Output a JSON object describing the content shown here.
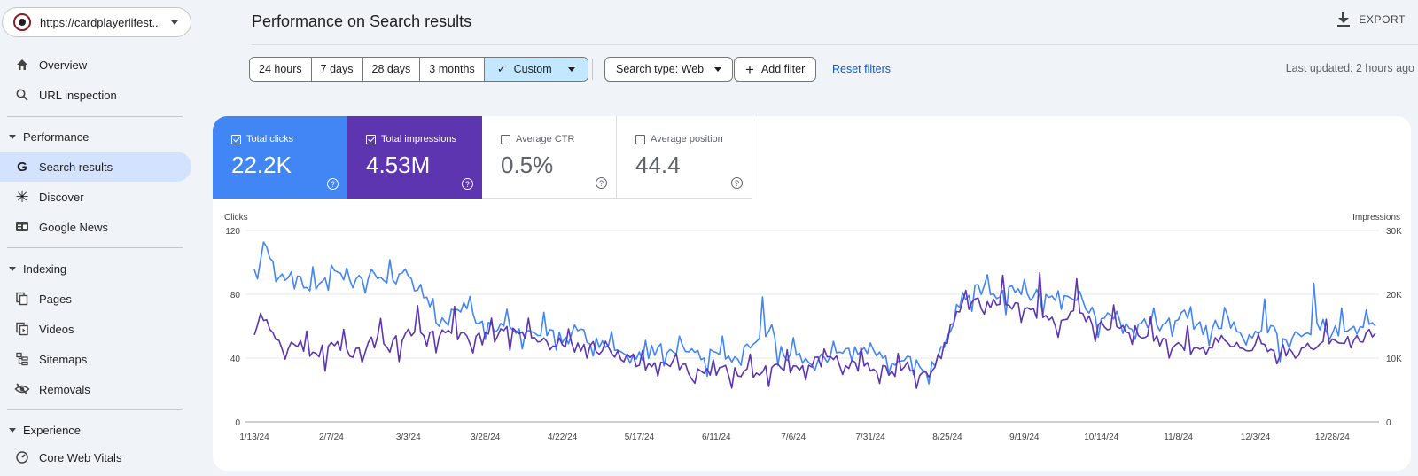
{
  "property": {
    "url": "https://cardplayerlifest..."
  },
  "sidebar": {
    "items": [
      {
        "label": "Overview",
        "icon": "home-icon"
      },
      {
        "label": "URL inspection",
        "icon": "search-icon"
      }
    ],
    "sections": [
      {
        "title": "Performance",
        "items": [
          {
            "label": "Search results",
            "icon": "google-g-icon",
            "active": true
          },
          {
            "label": "Discover",
            "icon": "asterisk-icon"
          },
          {
            "label": "Google News",
            "icon": "news-icon"
          }
        ]
      },
      {
        "title": "Indexing",
        "items": [
          {
            "label": "Pages",
            "icon": "pages-icon"
          },
          {
            "label": "Videos",
            "icon": "video-icon"
          },
          {
            "label": "Sitemaps",
            "icon": "sitemap-icon"
          },
          {
            "label": "Removals",
            "icon": "eye-off-icon"
          }
        ]
      },
      {
        "title": "Experience",
        "items": [
          {
            "label": "Core Web Vitals",
            "icon": "gauge-icon"
          }
        ]
      }
    ]
  },
  "header": {
    "title": "Performance on Search results",
    "export": "EXPORT"
  },
  "filters": {
    "ranges": [
      "24 hours",
      "7 days",
      "28 days",
      "3 months"
    ],
    "custom": "Custom",
    "search_type": "Search type: Web",
    "add_filter": "Add filter",
    "reset": "Reset filters",
    "last_updated": "Last updated: 2 hours ago"
  },
  "metrics": {
    "clicks": {
      "label": "Total clicks",
      "value": "22.2K",
      "checked": true,
      "color": "#4285f4"
    },
    "impressions": {
      "label": "Total impressions",
      "value": "4.53M",
      "checked": true,
      "color": "#5e35b1"
    },
    "ctr": {
      "label": "Average CTR",
      "value": "0.5%",
      "checked": false
    },
    "position": {
      "label": "Average position",
      "value": "44.4",
      "checked": false
    }
  },
  "chart_data": {
    "type": "line",
    "left_axis": {
      "label": "Clicks",
      "ticks": [
        "0",
        "40",
        "80",
        "120"
      ],
      "range": [
        0,
        120
      ]
    },
    "right_axis": {
      "label": "Impressions",
      "ticks": [
        "0",
        "10K",
        "20K",
        "30K"
      ],
      "range": [
        0,
        30000
      ]
    },
    "x_ticks": [
      "1/13/24",
      "2/7/24",
      "3/3/24",
      "3/28/24",
      "4/22/24",
      "5/17/24",
      "6/11/24",
      "7/6/24",
      "7/31/24",
      "8/25/24",
      "9/19/24",
      "10/14/24",
      "11/8/24",
      "12/3/24",
      "12/28/24"
    ],
    "x_start": "2024-01-13",
    "days": 364,
    "series": [
      {
        "name": "Clicks",
        "axis": "left",
        "color": "#4285f4",
        "anchors": [
          [
            0,
            92
          ],
          [
            3,
            112
          ],
          [
            7,
            88
          ],
          [
            12,
            95
          ],
          [
            18,
            84
          ],
          [
            25,
            96
          ],
          [
            32,
            85
          ],
          [
            38,
            92
          ],
          [
            45,
            88
          ],
          [
            50,
            94
          ],
          [
            55,
            80
          ],
          [
            60,
            62
          ],
          [
            66,
            73
          ],
          [
            72,
            66
          ],
          [
            78,
            60
          ],
          [
            84,
            56
          ],
          [
            90,
            60
          ],
          [
            95,
            56
          ],
          [
            100,
            52
          ],
          [
            106,
            56
          ],
          [
            112,
            48
          ],
          [
            118,
            46
          ],
          [
            124,
            42
          ],
          [
            130,
            45
          ],
          [
            136,
            44
          ],
          [
            140,
            48
          ],
          [
            145,
            40
          ],
          [
            150,
            44
          ],
          [
            156,
            40
          ],
          [
            160,
            45
          ],
          [
            165,
            52
          ],
          [
            168,
            58
          ],
          [
            172,
            42
          ],
          [
            178,
            40
          ],
          [
            184,
            38
          ],
          [
            190,
            46
          ],
          [
            196,
            44
          ],
          [
            202,
            42
          ],
          [
            208,
            40
          ],
          [
            212,
            38
          ],
          [
            216,
            36
          ],
          [
            220,
            35
          ],
          [
            222,
            42
          ],
          [
            226,
            55
          ],
          [
            230,
            78
          ],
          [
            235,
            85
          ],
          [
            240,
            80
          ],
          [
            246,
            82
          ],
          [
            252,
            80
          ],
          [
            258,
            78
          ],
          [
            262,
            82
          ],
          [
            266,
            76
          ],
          [
            272,
            70
          ],
          [
            278,
            64
          ],
          [
            282,
            60
          ],
          [
            288,
            62
          ],
          [
            292,
            58
          ],
          [
            296,
            62
          ],
          [
            302,
            66
          ],
          [
            306,
            60
          ],
          [
            310,
            58
          ],
          [
            316,
            64
          ],
          [
            320,
            56
          ],
          [
            324,
            52
          ],
          [
            330,
            60
          ],
          [
            334,
            48
          ],
          [
            338,
            52
          ],
          [
            342,
            56
          ],
          [
            346,
            62
          ],
          [
            352,
            58
          ],
          [
            358,
            60
          ],
          [
            362,
            62
          ],
          [
            364,
            58
          ]
        ],
        "spikes": [
          [
            1,
            -6
          ],
          [
            6,
            8
          ],
          [
            13,
            -12
          ],
          [
            19,
            10
          ],
          [
            24,
            -11
          ],
          [
            30,
            12
          ],
          [
            36,
            -10
          ],
          [
            44,
            14
          ],
          [
            52,
            -9
          ],
          [
            58,
            8
          ],
          [
            63,
            -8
          ],
          [
            70,
            10
          ],
          [
            75,
            -9
          ],
          [
            82,
            9
          ],
          [
            87,
            -10
          ],
          [
            94,
            12
          ],
          [
            98,
            -8
          ],
          [
            104,
            9
          ],
          [
            110,
            -10
          ],
          [
            116,
            6
          ],
          [
            122,
            -8
          ],
          [
            127,
            10
          ],
          [
            133,
            -9
          ],
          [
            138,
            8
          ],
          [
            147,
            -10
          ],
          [
            152,
            9
          ],
          [
            158,
            -6
          ],
          [
            165,
            28
          ],
          [
            170,
            -10
          ],
          [
            175,
            9
          ],
          [
            182,
            -10
          ],
          [
            188,
            10
          ],
          [
            194,
            -9
          ],
          [
            200,
            11
          ],
          [
            206,
            -8
          ],
          [
            214,
            -6
          ],
          [
            219,
            -10
          ],
          [
            228,
            10
          ],
          [
            233,
            -10
          ],
          [
            238,
            14
          ],
          [
            244,
            -12
          ],
          [
            250,
            11
          ],
          [
            256,
            -10
          ],
          [
            262,
            -14
          ],
          [
            268,
            12
          ],
          [
            274,
            -14
          ],
          [
            280,
            10
          ],
          [
            286,
            -12
          ],
          [
            292,
            14
          ],
          [
            298,
            -10
          ],
          [
            304,
            10
          ],
          [
            310,
            -9
          ],
          [
            315,
            12
          ],
          [
            322,
            -10
          ],
          [
            328,
            22
          ],
          [
            333,
            -12
          ],
          [
            338,
            9
          ],
          [
            344,
            32
          ],
          [
            349,
            -10
          ],
          [
            353,
            12
          ],
          [
            358,
            -8
          ],
          [
            361,
            10
          ]
        ]
      },
      {
        "name": "Impressions",
        "axis": "left_scaled",
        "color": "#5e35b1",
        "anchors": [
          [
            0,
            58
          ],
          [
            3,
            64
          ],
          [
            8,
            48
          ],
          [
            14,
            50
          ],
          [
            20,
            42
          ],
          [
            26,
            48
          ],
          [
            32,
            44
          ],
          [
            38,
            50
          ],
          [
            44,
            48
          ],
          [
            50,
            54
          ],
          [
            56,
            52
          ],
          [
            62,
            56
          ],
          [
            68,
            54
          ],
          [
            74,
            52
          ],
          [
            80,
            55
          ],
          [
            86,
            56
          ],
          [
            92,
            54
          ],
          [
            98,
            50
          ],
          [
            104,
            48
          ],
          [
            110,
            46
          ],
          [
            116,
            44
          ],
          [
            122,
            40
          ],
          [
            128,
            34
          ],
          [
            134,
            36
          ],
          [
            140,
            32
          ],
          [
            146,
            30
          ],
          [
            152,
            34
          ],
          [
            158,
            30
          ],
          [
            164,
            32
          ],
          [
            170,
            36
          ],
          [
            176,
            34
          ],
          [
            182,
            38
          ],
          [
            188,
            40
          ],
          [
            194,
            36
          ],
          [
            200,
            34
          ],
          [
            206,
            32
          ],
          [
            212,
            34
          ],
          [
            216,
            28
          ],
          [
            220,
            32
          ],
          [
            224,
            46
          ],
          [
            228,
            70
          ],
          [
            234,
            76
          ],
          [
            240,
            74
          ],
          [
            246,
            72
          ],
          [
            252,
            70
          ],
          [
            258,
            62
          ],
          [
            262,
            66
          ],
          [
            266,
            68
          ],
          [
            272,
            62
          ],
          [
            278,
            58
          ],
          [
            282,
            56
          ],
          [
            288,
            56
          ],
          [
            292,
            52
          ],
          [
            296,
            48
          ],
          [
            302,
            48
          ],
          [
            306,
            44
          ],
          [
            310,
            50
          ],
          [
            316,
            48
          ],
          [
            320,
            50
          ],
          [
            324,
            46
          ],
          [
            330,
            46
          ],
          [
            334,
            44
          ],
          [
            338,
            42
          ],
          [
            342,
            46
          ],
          [
            346,
            50
          ],
          [
            352,
            52
          ],
          [
            358,
            50
          ],
          [
            362,
            54
          ],
          [
            364,
            52
          ]
        ],
        "spikes": [
          [
            2,
            8
          ],
          [
            10,
            -10
          ],
          [
            17,
            14
          ],
          [
            23,
            -12
          ],
          [
            29,
            12
          ],
          [
            35,
            -8
          ],
          [
            41,
            18
          ],
          [
            47,
            -10
          ],
          [
            53,
            20
          ],
          [
            59,
            -8
          ],
          [
            65,
            16
          ],
          [
            71,
            -12
          ],
          [
            77,
            14
          ],
          [
            83,
            -10
          ],
          [
            89,
            12
          ],
          [
            96,
            -8
          ],
          [
            102,
            10
          ],
          [
            108,
            -10
          ],
          [
            114,
            8
          ],
          [
            120,
            -8
          ],
          [
            126,
            10
          ],
          [
            131,
            -8
          ],
          [
            137,
            12
          ],
          [
            143,
            -10
          ],
          [
            149,
            10
          ],
          [
            155,
            -8
          ],
          [
            161,
            10
          ],
          [
            167,
            -12
          ],
          [
            173,
            12
          ],
          [
            179,
            -10
          ],
          [
            185,
            10
          ],
          [
            191,
            -8
          ],
          [
            197,
            12
          ],
          [
            203,
            -10
          ],
          [
            209,
            8
          ],
          [
            215,
            -8
          ],
          [
            231,
            12
          ],
          [
            237,
            -10
          ],
          [
            243,
            16
          ],
          [
            249,
            -12
          ],
          [
            255,
            26
          ],
          [
            261,
            -14
          ],
          [
            267,
            20
          ],
          [
            273,
            -12
          ],
          [
            279,
            14
          ],
          [
            285,
            -10
          ],
          [
            291,
            12
          ],
          [
            297,
            -10
          ],
          [
            303,
            10
          ],
          [
            309,
            -8
          ],
          [
            314,
            8
          ],
          [
            320,
            -6
          ],
          [
            326,
            10
          ],
          [
            332,
            -8
          ],
          [
            340,
            6
          ],
          [
            348,
            10
          ],
          [
            356,
            -6
          ]
        ]
      }
    ]
  }
}
